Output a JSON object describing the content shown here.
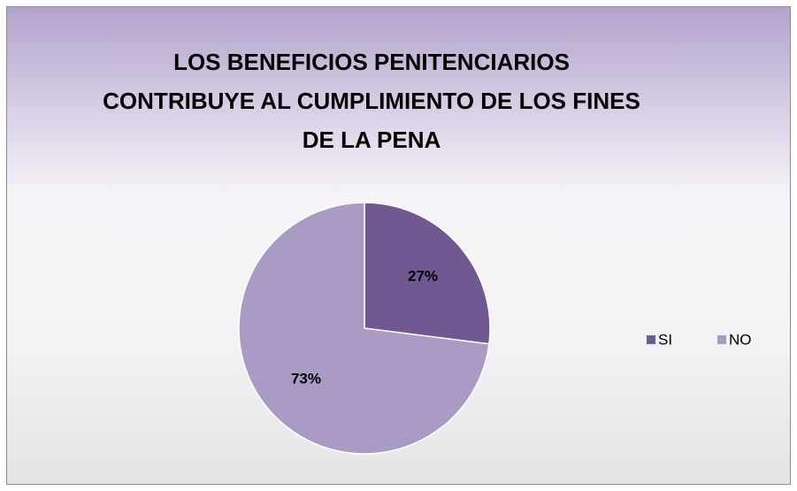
{
  "chart_data": {
    "type": "pie",
    "title": "LOS BENEFICIOS PENITENCIARIOS CONTRIBUYE AL CUMPLIMIENTO DE LOS FINES DE LA PENA",
    "categories": [
      "SI",
      "NO"
    ],
    "values": [
      27,
      73
    ],
    "value_labels": [
      "27%",
      "73%"
    ],
    "colors": [
      "#715892",
      "#a99bc3"
    ],
    "legend": "right"
  }
}
